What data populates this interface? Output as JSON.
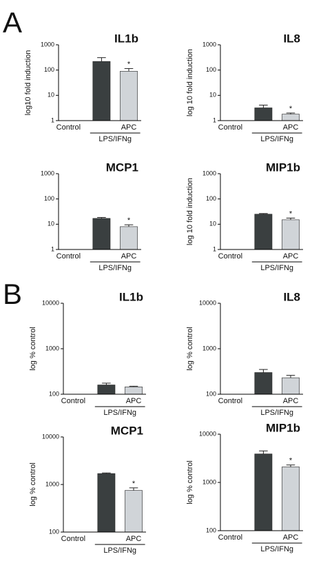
{
  "panel_labels": [
    "A",
    "B"
  ],
  "chart_data": [
    {
      "type": "bar",
      "title": "IL1b",
      "ylabel": "log10 fold induction",
      "log_scale": true,
      "categories": [
        "Control",
        null,
        "APC"
      ],
      "group_label": "LPS/IFNg",
      "values": [
        1,
        220,
        90
      ],
      "errors": [
        0,
        90,
        25
      ],
      "significance": [
        null,
        null,
        "*"
      ],
      "colors": [
        "#3a3f40",
        "#3a3f40",
        "#d0d4d8"
      ],
      "ylim": [
        1,
        1000
      ],
      "yticks": [
        1,
        10,
        100,
        1000
      ]
    },
    {
      "type": "bar",
      "title": "IL8",
      "ylabel": "log 10 fold induction",
      "log_scale": true,
      "categories": [
        "Control",
        null,
        "APC"
      ],
      "group_label": "LPS/IFNg",
      "values": [
        1,
        3.2,
        1.8
      ],
      "errors": [
        0,
        0.9,
        0.2
      ],
      "significance": [
        null,
        null,
        "*"
      ],
      "colors": [
        "#3a3f40",
        "#3a3f40",
        "#d0d4d8"
      ],
      "ylim": [
        1,
        1000
      ],
      "yticks": [
        1,
        10,
        100,
        1000
      ]
    },
    {
      "type": "bar",
      "title": "MCP1",
      "log_scale": true,
      "categories": [
        "Control",
        null,
        "APC"
      ],
      "group_label": "LPS/IFNg",
      "values": [
        1,
        17,
        8
      ],
      "errors": [
        0,
        1.5,
        1.5
      ],
      "significance": [
        null,
        null,
        "*"
      ],
      "colors": [
        "#3a3f40",
        "#3a3f40",
        "#d0d4d8"
      ],
      "ylim": [
        1,
        1000
      ],
      "yticks": [
        1,
        10,
        100,
        1000
      ]
    },
    {
      "type": "bar",
      "title": "MIP1b",
      "ylabel": "log 10 fold induction",
      "log_scale": true,
      "categories": [
        "Control",
        null,
        "APC"
      ],
      "group_label": "LPS/IFNg",
      "values": [
        1,
        25,
        15
      ],
      "errors": [
        0,
        1.5,
        2.5
      ],
      "significance": [
        null,
        null,
        "*"
      ],
      "colors": [
        "#3a3f40",
        "#3a3f40",
        "#d0d4d8"
      ],
      "ylim": [
        1,
        1000
      ],
      "yticks": [
        1,
        10,
        100,
        1000
      ]
    },
    {
      "type": "bar",
      "title": "IL1b",
      "ylabel": "log % control",
      "log_scale": true,
      "categories": [
        "Control",
        null,
        "APC"
      ],
      "group_label": "LPS/IFNg",
      "values": [
        100,
        160,
        145
      ],
      "errors": [
        0,
        15,
        5
      ],
      "significance": [
        null,
        null,
        null
      ],
      "colors": [
        "#3a3f40",
        "#3a3f40",
        "#d0d4d8"
      ],
      "ylim": [
        100,
        10000
      ],
      "yticks": [
        100,
        1000,
        10000
      ]
    },
    {
      "type": "bar",
      "title": "IL8",
      "ylabel": "log % control",
      "log_scale": true,
      "categories": [
        "Control",
        null,
        "APC"
      ],
      "group_label": "LPS/IFNg",
      "values": [
        100,
        300,
        230
      ],
      "errors": [
        0,
        50,
        30
      ],
      "significance": [
        null,
        null,
        null
      ],
      "colors": [
        "#3a3f40",
        "#3a3f40",
        "#d0d4d8"
      ],
      "ylim": [
        100,
        10000
      ],
      "yticks": [
        100,
        1000,
        10000
      ]
    },
    {
      "type": "bar",
      "title": "MCP1",
      "ylabel": "log % control",
      "log_scale": true,
      "categories": [
        "Control",
        null,
        "APC"
      ],
      "group_label": "LPS/IFNg",
      "values": [
        100,
        1700,
        750
      ],
      "errors": [
        0,
        50,
        100
      ],
      "significance": [
        null,
        null,
        "*"
      ],
      "colors": [
        "#3a3f40",
        "#3a3f40",
        "#d0d4d8"
      ],
      "ylim": [
        100,
        10000
      ],
      "yticks": [
        100,
        1000,
        10000
      ]
    },
    {
      "type": "bar",
      "title": "MIP1b",
      "ylabel": "log % control",
      "log_scale": true,
      "categories": [
        "Control",
        null,
        "APC"
      ],
      "group_label": "LPS/IFNg",
      "values": [
        100,
        3900,
        2100
      ],
      "errors": [
        0,
        600,
        200
      ],
      "significance": [
        null,
        null,
        "*"
      ],
      "colors": [
        "#3a3f40",
        "#3a3f40",
        "#d0d4d8"
      ],
      "ylim": [
        100,
        10000
      ],
      "yticks": [
        100,
        1000,
        10000
      ]
    }
  ]
}
